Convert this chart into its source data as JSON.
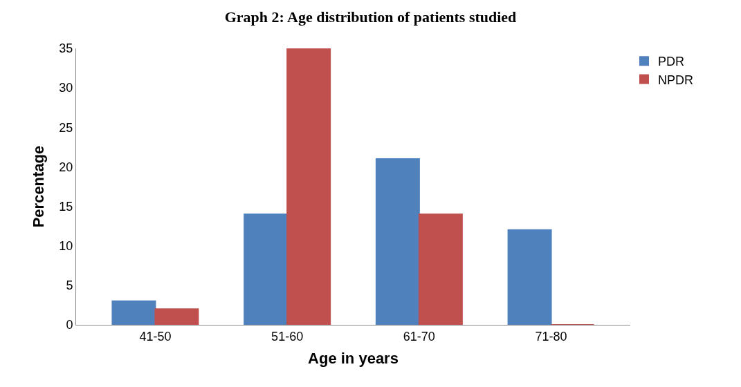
{
  "chart_data": {
    "type": "bar",
    "title": "Graph 2: Age distribution of patients studied",
    "xlabel": "Age in years",
    "ylabel": "Percentage",
    "categories": [
      "41-50",
      "51-60",
      "61-70",
      "71-80"
    ],
    "series": [
      {
        "name": "PDR",
        "color": "#4f81bd",
        "values": [
          3,
          14,
          21,
          12
        ]
      },
      {
        "name": "NPDR",
        "color": "#c0504d",
        "values": [
          2,
          35,
          14,
          0
        ]
      }
    ],
    "ylim": [
      0,
      35
    ],
    "yticks": [
      0,
      5,
      10,
      15,
      20,
      25,
      30,
      35
    ],
    "grid": false,
    "legend": "top right"
  }
}
